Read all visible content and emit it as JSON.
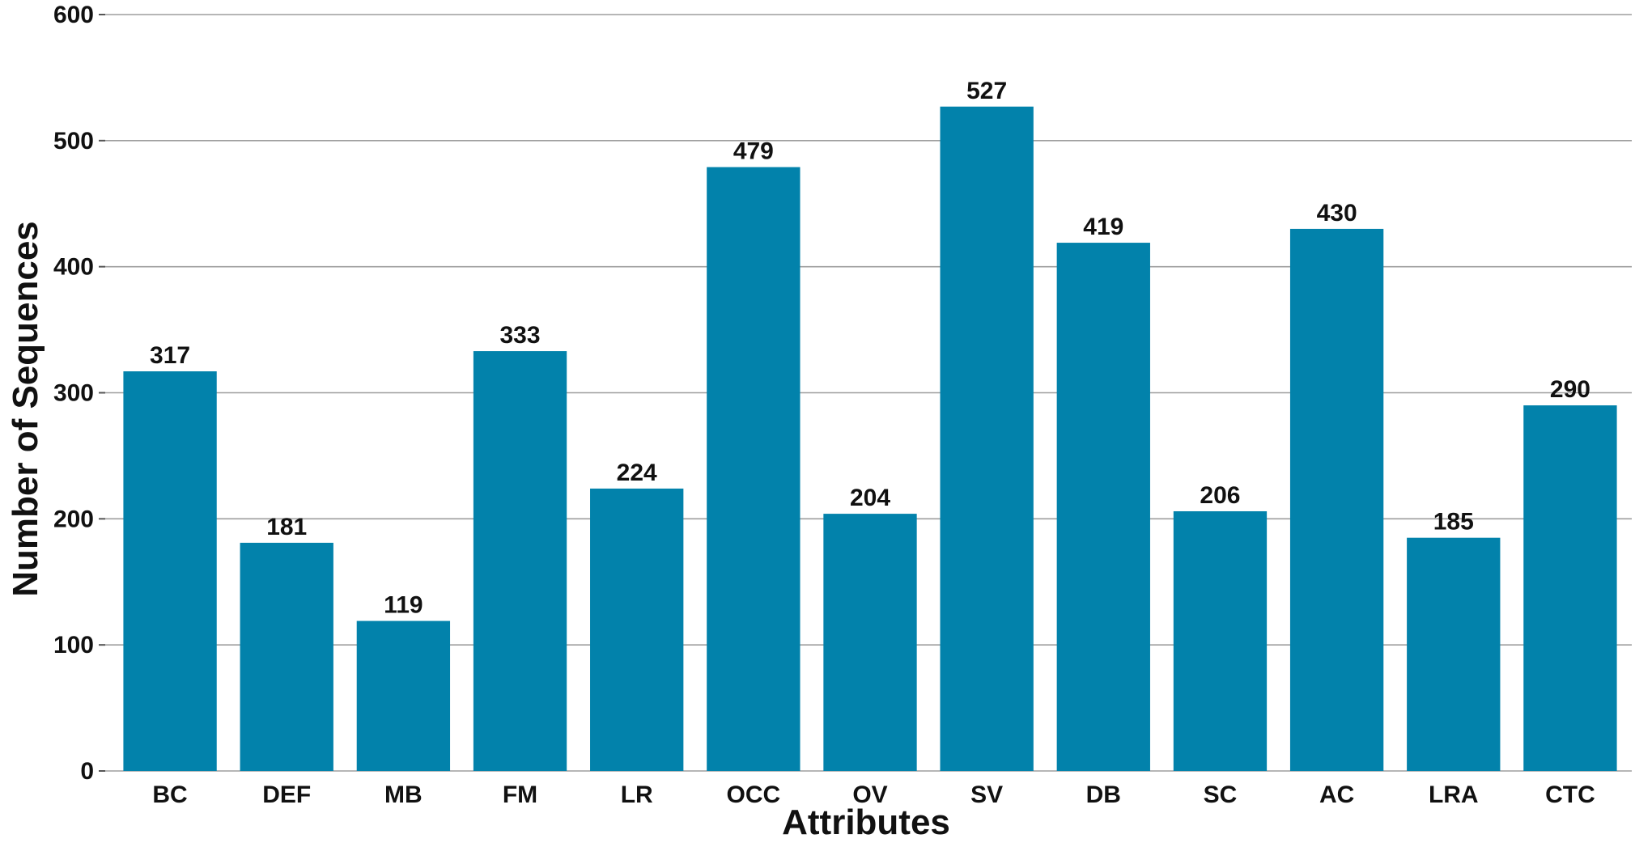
{
  "chart_data": {
    "type": "bar",
    "title": "",
    "xlabel": "Attributes",
    "ylabel": "Number of Sequences",
    "categories": [
      "BC",
      "DEF",
      "MB",
      "FM",
      "LR",
      "OCC",
      "OV",
      "SV",
      "DB",
      "SC",
      "AC",
      "LRA",
      "CTC"
    ],
    "values": [
      317,
      181,
      119,
      333,
      224,
      479,
      204,
      527,
      419,
      206,
      430,
      185,
      290
    ],
    "ylim": [
      0,
      600
    ],
    "yticks": [
      0,
      100,
      200,
      300,
      400,
      500,
      600
    ],
    "grid": "horizontal",
    "legend": "none",
    "bar_color": "#0282ab",
    "data_labels": true
  }
}
